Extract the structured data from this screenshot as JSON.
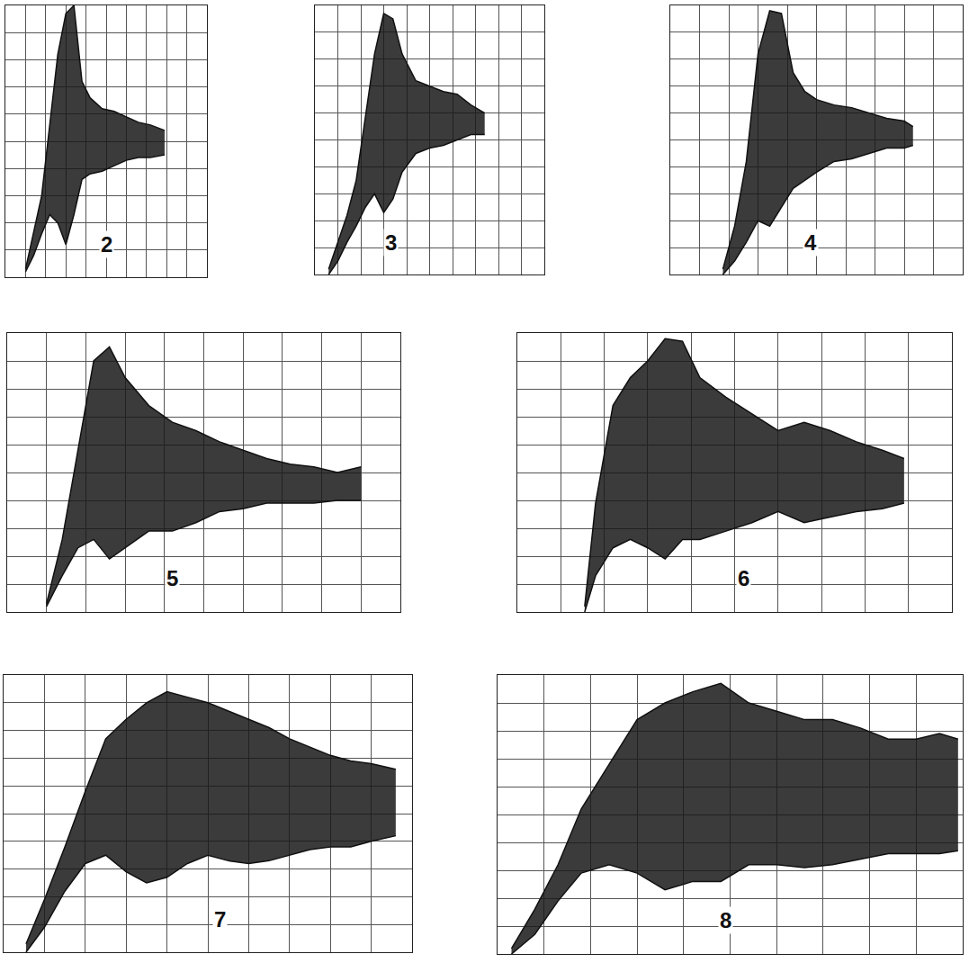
{
  "chart_data": [
    {
      "type": "band",
      "title": "2",
      "x": [
        1.0,
        1.4,
        1.8,
        2.2,
        2.6,
        3.0,
        3.4,
        3.8,
        4.2,
        4.8,
        5.4,
        6.0,
        6.6,
        7.2,
        7.9
      ],
      "series": [
        {
          "color": "#111111",
          "values": [
            0.3,
            1.6,
            3.0,
            5.6,
            8.2,
            9.7,
            10.0,
            7.2,
            6.6,
            6.2,
            6.1,
            5.9,
            5.7,
            5.6,
            5.4
          ]
        },
        {
          "color": "#111111",
          "values": [
            0.2,
            0.8,
            1.6,
            2.3,
            2.0,
            1.2,
            2.3,
            3.6,
            3.8,
            3.9,
            4.1,
            4.3,
            4.4,
            4.4,
            4.5
          ]
        }
      ],
      "xlim": [
        0,
        10
      ],
      "ylim": [
        0,
        10
      ],
      "xticks": [
        0,
        1,
        2,
        3,
        4,
        5,
        6,
        7,
        8,
        9,
        10
      ],
      "yticks": [
        0,
        1,
        2,
        3,
        4,
        5,
        6,
        7,
        8,
        9,
        10
      ],
      "grid": true,
      "tick_labels": false
    },
    {
      "type": "band",
      "title": "3",
      "x": [
        0.6,
        1.0,
        1.4,
        1.8,
        2.2,
        2.6,
        3.0,
        3.4,
        3.8,
        4.4,
        5.0,
        5.6,
        6.2,
        6.8,
        7.4
      ],
      "series": [
        {
          "color": "#111111",
          "values": [
            0.2,
            1.2,
            2.2,
            3.5,
            5.8,
            8.2,
            9.7,
            9.5,
            8.2,
            7.2,
            7.0,
            6.8,
            6.7,
            6.3,
            6.0
          ]
        },
        {
          "color": "#111111",
          "values": [
            0.0,
            0.5,
            1.2,
            1.8,
            2.5,
            3.0,
            2.3,
            2.8,
            3.8,
            4.5,
            4.7,
            4.8,
            5.0,
            5.2,
            5.2
          ]
        }
      ],
      "xlim": [
        0,
        10
      ],
      "ylim": [
        0,
        10
      ],
      "xticks": [
        0,
        1,
        2,
        3,
        4,
        5,
        6,
        7,
        8,
        9,
        10
      ],
      "yticks": [
        0,
        1,
        2,
        3,
        4,
        5,
        6,
        7,
        8,
        9,
        10
      ],
      "grid": true,
      "tick_labels": false
    },
    {
      "type": "band",
      "title": "4",
      "x": [
        1.8,
        2.2,
        2.6,
        3.0,
        3.4,
        3.8,
        4.2,
        4.6,
        5.0,
        5.6,
        6.2,
        6.8,
        7.4,
        8.0,
        8.3
      ],
      "series": [
        {
          "color": "#111111",
          "values": [
            0.2,
            1.8,
            4.2,
            8.2,
            9.8,
            9.7,
            7.5,
            6.8,
            6.5,
            6.3,
            6.2,
            6.0,
            5.8,
            5.7,
            5.5
          ]
        },
        {
          "color": "#111111",
          "values": [
            0.0,
            0.5,
            1.2,
            2.0,
            1.8,
            2.5,
            3.2,
            3.5,
            3.8,
            4.2,
            4.3,
            4.5,
            4.7,
            4.7,
            4.8
          ]
        }
      ],
      "xlim": [
        0,
        10
      ],
      "ylim": [
        0,
        10
      ],
      "xticks": [
        0,
        1,
        2,
        3,
        4,
        5,
        6,
        7,
        8,
        9,
        10
      ],
      "yticks": [
        0,
        1,
        2,
        3,
        4,
        5,
        6,
        7,
        8,
        9,
        10
      ],
      "grid": true,
      "tick_labels": false
    },
    {
      "type": "band",
      "title": "5",
      "x": [
        1.0,
        1.4,
        1.8,
        2.2,
        2.6,
        3.0,
        3.6,
        4.2,
        4.8,
        5.4,
        6.0,
        6.6,
        7.2,
        7.8,
        8.4,
        9.0
      ],
      "series": [
        {
          "color": "#111111",
          "values": [
            0.3,
            2.6,
            5.8,
            9.0,
            9.5,
            8.4,
            7.4,
            6.8,
            6.5,
            6.1,
            5.8,
            5.5,
            5.3,
            5.2,
            5.0,
            5.2
          ]
        },
        {
          "color": "#111111",
          "values": [
            0.2,
            1.3,
            2.3,
            2.6,
            1.9,
            2.3,
            2.9,
            2.9,
            3.2,
            3.6,
            3.7,
            3.9,
            3.9,
            3.9,
            4.0,
            4.0
          ]
        }
      ],
      "xlim": [
        0,
        10
      ],
      "ylim": [
        0,
        10
      ],
      "xticks": [
        0,
        1,
        2,
        3,
        4,
        5,
        6,
        7,
        8,
        9,
        10
      ],
      "yticks": [
        0,
        1,
        2,
        3,
        4,
        5,
        6,
        7,
        8,
        9,
        10
      ],
      "grid": true,
      "tick_labels": false
    },
    {
      "type": "band",
      "title": "6",
      "x": [
        1.55,
        1.8,
        2.2,
        2.6,
        3.0,
        3.4,
        3.8,
        4.2,
        4.8,
        5.4,
        6.0,
        6.6,
        7.2,
        7.8,
        8.4,
        8.9
      ],
      "series": [
        {
          "color": "#111111",
          "values": [
            0.2,
            3.9,
            7.4,
            8.4,
            9.0,
            9.8,
            9.7,
            8.4,
            7.7,
            7.1,
            6.5,
            6.8,
            6.5,
            6.1,
            5.8,
            5.5
          ]
        },
        {
          "color": "#111111",
          "values": [
            0.0,
            1.3,
            2.3,
            2.6,
            2.3,
            1.9,
            2.6,
            2.6,
            2.9,
            3.2,
            3.6,
            3.2,
            3.4,
            3.6,
            3.7,
            3.9
          ]
        }
      ],
      "xlim": [
        0,
        10
      ],
      "ylim": [
        0,
        10
      ],
      "xticks": [
        0,
        1,
        2,
        3,
        4,
        5,
        6,
        7,
        8,
        9,
        10
      ],
      "yticks": [
        0,
        1,
        2,
        3,
        4,
        5,
        6,
        7,
        8,
        9,
        10
      ],
      "grid": true,
      "tick_labels": false
    },
    {
      "type": "band",
      "title": "7",
      "x": [
        0.55,
        1.0,
        1.5,
        2.0,
        2.5,
        3.0,
        3.5,
        4.0,
        4.5,
        5.0,
        5.5,
        6.0,
        6.5,
        7.0,
        7.5,
        8.0,
        8.5,
        9.0,
        9.6
      ],
      "series": [
        {
          "color": "#111111",
          "values": [
            0.3,
            1.9,
            3.8,
            5.8,
            7.7,
            8.4,
            9.0,
            9.4,
            9.2,
            9.0,
            8.7,
            8.4,
            8.1,
            7.7,
            7.4,
            7.1,
            6.9,
            6.8,
            6.6
          ]
        },
        {
          "color": "#111111",
          "values": [
            0.0,
            0.9,
            2.2,
            3.2,
            3.5,
            2.9,
            2.5,
            2.7,
            3.2,
            3.5,
            3.3,
            3.2,
            3.3,
            3.5,
            3.7,
            3.8,
            3.8,
            4.0,
            4.2
          ]
        }
      ],
      "xlim": [
        0,
        10
      ],
      "ylim": [
        0,
        10
      ],
      "xticks": [
        0,
        1,
        2,
        3,
        4,
        5,
        6,
        7,
        8,
        9,
        10
      ],
      "yticks": [
        0,
        1,
        2,
        3,
        4,
        5,
        6,
        7,
        8,
        9,
        10
      ],
      "grid": true,
      "tick_labels": false
    },
    {
      "type": "band",
      "title": "8",
      "x": [
        0.3,
        0.8,
        1.3,
        1.8,
        2.4,
        3.0,
        3.6,
        4.2,
        4.8,
        5.4,
        6.0,
        6.6,
        7.2,
        7.8,
        8.4,
        9.0,
        9.5,
        9.9
      ],
      "series": [
        {
          "color": "#111111",
          "values": [
            0.2,
            1.6,
            3.2,
            5.2,
            6.8,
            8.4,
            9.0,
            9.4,
            9.7,
            9.0,
            8.7,
            8.4,
            8.4,
            8.1,
            7.7,
            7.7,
            7.9,
            7.7
          ]
        },
        {
          "color": "#111111",
          "values": [
            0.0,
            0.7,
            1.9,
            2.9,
            3.2,
            2.9,
            2.3,
            2.6,
            2.6,
            3.2,
            3.2,
            3.1,
            3.2,
            3.4,
            3.6,
            3.6,
            3.6,
            3.7
          ]
        }
      ],
      "xlim": [
        0,
        10
      ],
      "ylim": [
        0,
        10
      ],
      "xticks": [
        0,
        1,
        2,
        3,
        4,
        5,
        6,
        7,
        8,
        9,
        10
      ],
      "yticks": [
        0,
        1,
        2,
        3,
        4,
        5,
        6,
        7,
        8,
        9,
        10
      ],
      "grid": true,
      "tick_labels": false
    }
  ]
}
